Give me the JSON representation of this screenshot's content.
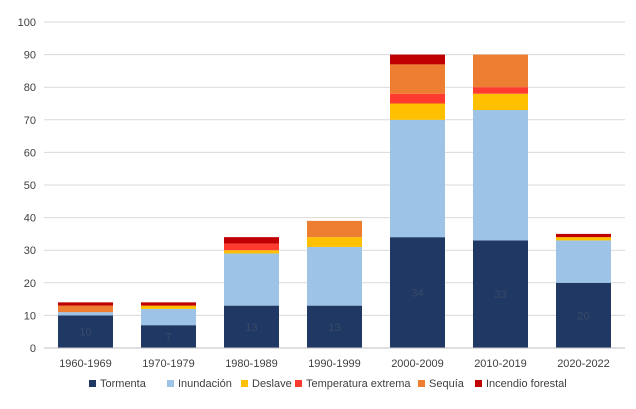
{
  "chart_data": {
    "type": "bar",
    "stacked": true,
    "title": "",
    "xlabel": "",
    "ylabel": "",
    "ylim": [
      0,
      100
    ],
    "yticks": [
      0,
      10,
      20,
      30,
      40,
      50,
      60,
      70,
      80,
      90,
      100
    ],
    "grid": true,
    "legend_position": "bottom",
    "categories": [
      "1960-1969",
      "1970-1979",
      "1980-1989",
      "1990-1999",
      "2000-2009",
      "2010-2019",
      "2020-2022"
    ],
    "series": [
      {
        "name": "Tormenta",
        "color": "#1f3864",
        "values": [
          10,
          7,
          13,
          13,
          34,
          33,
          20
        ]
      },
      {
        "name": "Inundación",
        "color": "#9dc3e6",
        "values": [
          1,
          5,
          16,
          18,
          36,
          40,
          13
        ]
      },
      {
        "name": "Deslave",
        "color": "#ffc000",
        "values": [
          0,
          1,
          1,
          3,
          5,
          5,
          1
        ]
      },
      {
        "name": "Temperatura extrema",
        "color": "#ff3b30",
        "values": [
          0,
          0,
          2,
          0,
          3,
          2,
          0
        ]
      },
      {
        "name": "Sequía",
        "color": "#ed7d31",
        "values": [
          2,
          0,
          0,
          5,
          9,
          10,
          0
        ]
      },
      {
        "name": "Incendio forestal",
        "color": "#c00000",
        "values": [
          1,
          1,
          2,
          0,
          3,
          0,
          1
        ]
      }
    ],
    "data_labels": {
      "series": "Tormenta",
      "values": [
        "10",
        "7",
        "13",
        "13",
        "34",
        "33",
        "20"
      ]
    }
  }
}
